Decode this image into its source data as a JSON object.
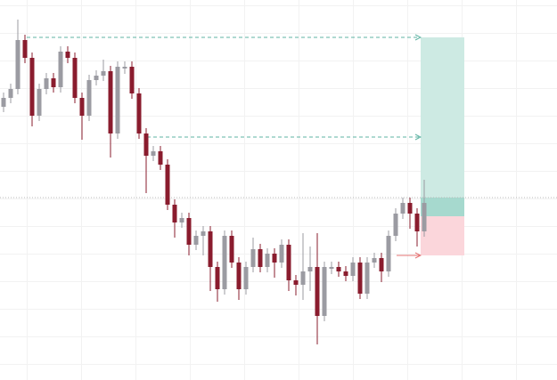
{
  "chart_data": {
    "type": "candlestick",
    "ylim": [
      0,
      427
    ],
    "up_color": "#9b9ba2",
    "down_color": "#8a1c2e",
    "candles": [
      [
        307,
        323,
        301,
        317
      ],
      [
        317,
        333,
        311,
        327
      ],
      [
        327,
        405,
        321,
        382
      ],
      [
        382,
        388,
        356,
        362
      ],
      [
        362,
        368,
        285,
        297
      ],
      [
        297,
        333,
        291,
        327
      ],
      [
        327,
        345,
        321,
        339
      ],
      [
        339,
        345,
        323,
        329
      ],
      [
        329,
        375,
        323,
        369
      ],
      [
        369,
        375,
        356,
        362
      ],
      [
        362,
        368,
        311,
        317
      ],
      [
        317,
        323,
        270,
        297
      ],
      [
        297,
        343,
        291,
        337
      ],
      [
        337,
        348,
        331,
        342
      ],
      [
        342,
        360,
        336,
        347
      ],
      [
        347,
        353,
        250,
        277
      ],
      [
        277,
        358,
        271,
        352
      ],
      [
        350,
        358,
        344,
        352
      ],
      [
        352,
        358,
        316,
        322
      ],
      [
        322,
        328,
        271,
        277
      ],
      [
        277,
        283,
        210,
        252
      ],
      [
        252,
        263,
        246,
        257
      ],
      [
        257,
        263,
        236,
        242
      ],
      [
        242,
        248,
        191,
        197
      ],
      [
        197,
        203,
        160,
        177
      ],
      [
        177,
        188,
        171,
        182
      ],
      [
        182,
        188,
        140,
        152
      ],
      [
        152,
        168,
        146,
        162
      ],
      [
        162,
        173,
        140,
        167
      ],
      [
        167,
        173,
        100,
        127
      ],
      [
        127,
        133,
        88,
        102
      ],
      [
        102,
        168,
        96,
        162
      ],
      [
        162,
        168,
        126,
        132
      ],
      [
        132,
        138,
        90,
        102
      ],
      [
        102,
        133,
        96,
        127
      ],
      [
        127,
        160,
        121,
        147
      ],
      [
        147,
        153,
        121,
        127
      ],
      [
        127,
        148,
        121,
        142
      ],
      [
        142,
        148,
        115,
        132
      ],
      [
        132,
        158,
        126,
        152
      ],
      [
        152,
        158,
        100,
        112
      ],
      [
        112,
        118,
        95,
        107
      ],
      [
        107,
        165,
        90,
        122
      ],
      [
        122,
        150,
        100,
        127
      ],
      [
        127,
        165,
        40,
        72
      ],
      [
        72,
        133,
        66,
        127
      ],
      [
        125,
        133,
        119,
        127
      ],
      [
        127,
        133,
        116,
        122
      ],
      [
        122,
        128,
        111,
        117
      ],
      [
        117,
        138,
        111,
        132
      ],
      [
        132,
        138,
        91,
        97
      ],
      [
        97,
        138,
        91,
        132
      ],
      [
        132,
        143,
        126,
        137
      ],
      [
        137,
        143,
        110,
        122
      ],
      [
        122,
        168,
        116,
        162
      ],
      [
        162,
        193,
        156,
        187
      ],
      [
        187,
        205,
        181,
        199
      ],
      [
        199,
        205,
        170,
        187
      ],
      [
        187,
        193,
        150,
        167
      ],
      [
        167,
        225,
        161,
        199
      ]
    ],
    "position": {
      "target": 385,
      "partial_target": 273,
      "entry": 184,
      "stop": 140,
      "target_color": "#cdeae3",
      "stop_color": "#fbd6db"
    },
    "current_price": 205
  }
}
